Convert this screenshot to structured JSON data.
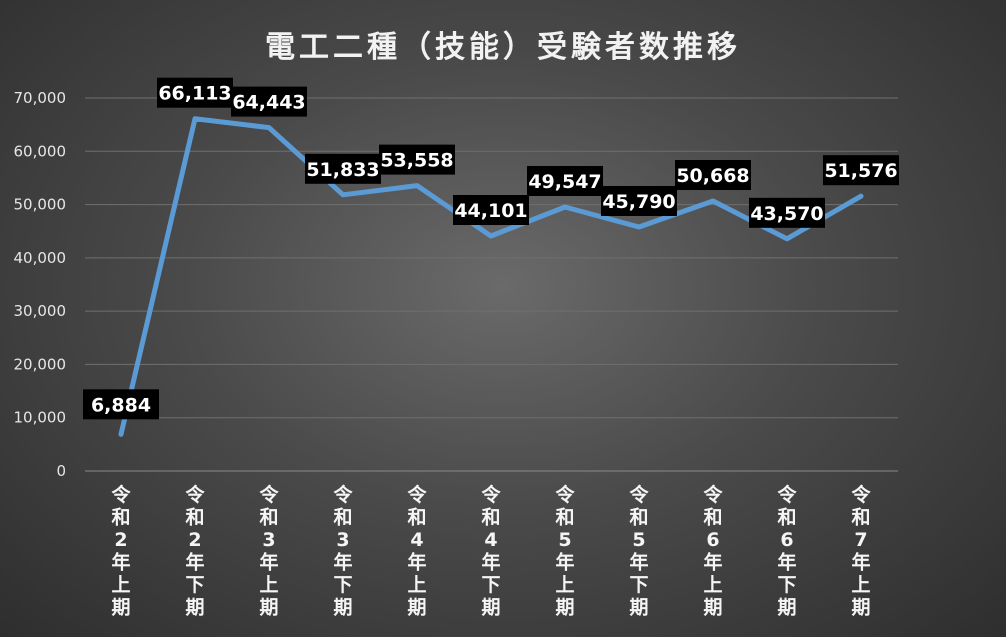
{
  "chart_data": {
    "type": "line",
    "title": "電工二種（技能）受験者数推移",
    "xlabel": "",
    "ylabel": "",
    "ylim": [
      0,
      70000
    ],
    "yticks": [
      0,
      10000,
      20000,
      30000,
      40000,
      50000,
      60000,
      70000
    ],
    "ytick_labels": [
      "0",
      "10,000",
      "20,000",
      "30,000",
      "40,000",
      "50,000",
      "60,000",
      "70,000"
    ],
    "categories": [
      "令和2年上期",
      "令和2年下期",
      "令和3年上期",
      "令和3年下期",
      "令和4年上期",
      "令和4年下期",
      "令和5年上期",
      "令和5年下期",
      "令和6年上期",
      "令和6年下期",
      "令和7年上期"
    ],
    "series": [
      {
        "values": [
          6884,
          66113,
          64443,
          51833,
          53558,
          44101,
          49547,
          45790,
          50668,
          43570,
          51576
        ],
        "value_labels": [
          "6,884",
          "66,113",
          "64,443",
          "51,833",
          "53,558",
          "44,101",
          "49,547",
          "45,790",
          "50,668",
          "43,570",
          "51,576"
        ],
        "color": "#5b9bd5"
      }
    ],
    "grid": true,
    "legend": "none"
  }
}
